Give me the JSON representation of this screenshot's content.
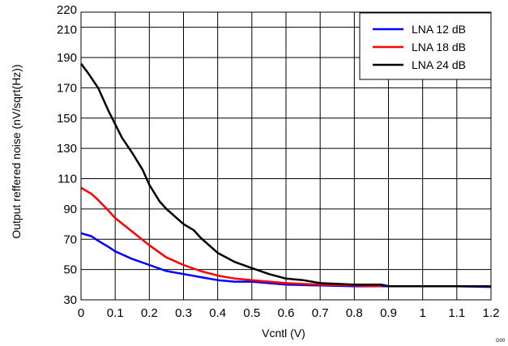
{
  "chart_data": {
    "type": "line",
    "xlabel": "Vcntl (V)",
    "ylabel": "Output reffered noise (nV/sqrt(Hz))",
    "xlim": [
      0,
      1.2
    ],
    "ylim": [
      30,
      220
    ],
    "xticks": [
      "0",
      "0.1",
      "0.2",
      "0.3",
      "0.4",
      "0.5",
      "0.6",
      "0.7",
      "0.8",
      "0.9",
      "1",
      "1.1",
      "1.2"
    ],
    "yticks": [
      "30",
      "50",
      "70",
      "90",
      "110",
      "130",
      "150",
      "170",
      "190",
      "210",
      "220"
    ],
    "grid": true,
    "legend_position": "top-right",
    "series": [
      {
        "name": "LNA 12 dB",
        "color": "#0000ff",
        "x": [
          0,
          0.03,
          0.05,
          0.08,
          0.1,
          0.15,
          0.2,
          0.25,
          0.3,
          0.35,
          0.4,
          0.45,
          0.5,
          0.6,
          0.7,
          0.8,
          0.9,
          1.0,
          1.1,
          1.2
        ],
        "y": [
          74,
          72,
          69,
          65,
          62,
          57,
          53,
          49,
          47,
          45,
          43,
          42,
          42,
          40,
          39.5,
          39,
          39,
          39,
          39,
          38.5
        ]
      },
      {
        "name": "LNA 18 dB",
        "color": "#ff0000",
        "x": [
          0,
          0.03,
          0.05,
          0.08,
          0.1,
          0.15,
          0.2,
          0.25,
          0.3,
          0.35,
          0.4,
          0.45,
          0.5,
          0.6,
          0.7,
          0.8,
          0.88
        ],
        "y": [
          104,
          100,
          96,
          89,
          84,
          75,
          66,
          58,
          53,
          49,
          46,
          44,
          43,
          41,
          40,
          39.5,
          39
        ]
      },
      {
        "name": "LNA 24 dB",
        "color": "#000000",
        "x": [
          0,
          0.02,
          0.05,
          0.08,
          0.1,
          0.12,
          0.15,
          0.18,
          0.2,
          0.23,
          0.25,
          0.28,
          0.3,
          0.33,
          0.35,
          0.4,
          0.45,
          0.5,
          0.55,
          0.6,
          0.65,
          0.7,
          0.8,
          0.88,
          0.9,
          1.0,
          1.2
        ],
        "y": [
          186,
          180,
          170,
          155,
          146,
          137,
          127,
          116,
          106,
          95,
          90,
          84,
          80,
          76,
          71,
          61,
          55,
          51,
          47,
          44,
          43,
          41,
          40,
          40,
          39,
          39,
          39
        ]
      }
    ]
  },
  "corner_tag": "G00"
}
